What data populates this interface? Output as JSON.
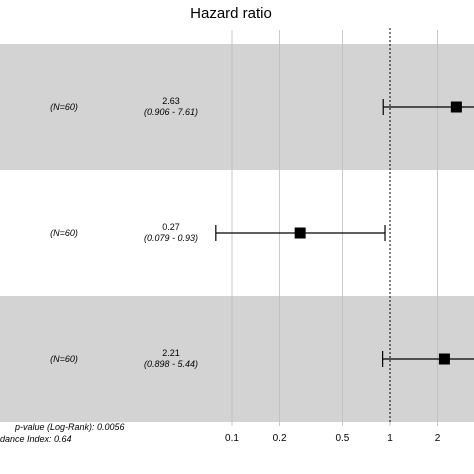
{
  "chart_data": {
    "type": "forest",
    "title": "Hazard ratio",
    "x_scale": "log",
    "xlim": [
      0.05,
      3.2
    ],
    "reference_line": 1,
    "grid": true,
    "x_ticks": [
      0.1,
      0.2,
      0.5,
      1,
      2
    ],
    "x_tick_labels": [
      "0.1",
      "0.2",
      "0.5",
      "1",
      "2"
    ],
    "rows": [
      {
        "n_label": "(N=60)",
        "hr": 2.63,
        "ci_low": 0.906,
        "ci_high": 7.61,
        "hr_text": "2.63",
        "ci_text": "(0.906 - 7.61)",
        "shaded": true
      },
      {
        "n_label": "(N=60)",
        "hr": 0.27,
        "ci_low": 0.079,
        "ci_high": 0.93,
        "hr_text": "0.27",
        "ci_text": "(0.079 - 0.93)",
        "shaded": false
      },
      {
        "n_label": "(N=60)",
        "hr": 2.21,
        "ci_low": 0.898,
        "ci_high": 5.44,
        "hr_text": "2.21",
        "ci_text": "(0.898 - 5.44)",
        "shaded": true
      }
    ],
    "footnotes": [
      "p-value (Log-Rank): 0.0056",
      "dance Index: 0.64"
    ]
  },
  "colors": {
    "shade": "#d3d3d3",
    "grid": "#bdbdbd",
    "mark": "#000000"
  }
}
